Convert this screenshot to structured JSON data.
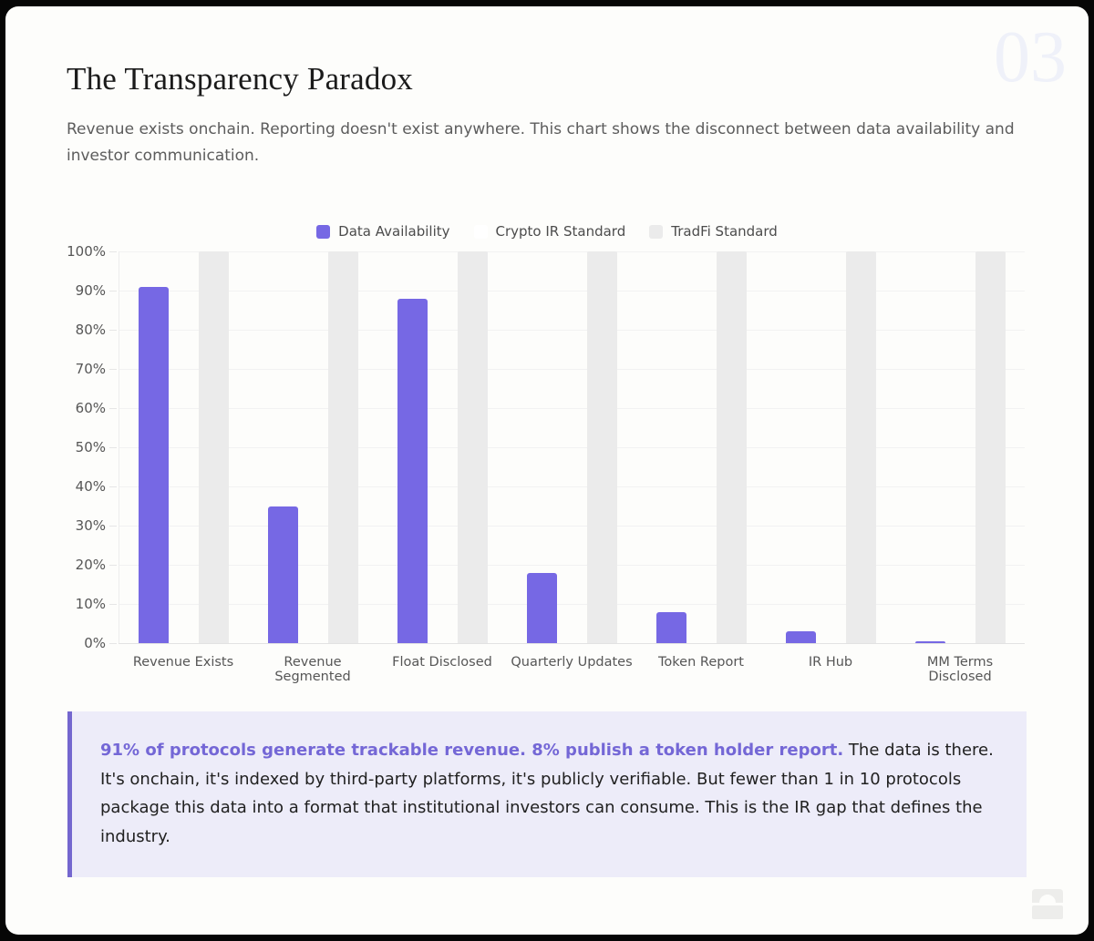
{
  "page": {
    "page_number": "03",
    "title": "The Transparency Paradox",
    "subtitle": "Revenue exists onchain. Reporting doesn't exist anywhere. This chart shows the disconnect between data availability and investor communication."
  },
  "chart_data": {
    "type": "bar",
    "title": "",
    "categories": [
      "Revenue Exists",
      "Revenue Segmented",
      "Float Disclosed",
      "Quarterly Updates",
      "Token Report",
      "IR Hub",
      "MM Terms Disclosed"
    ],
    "series": [
      {
        "name": "Data Availability",
        "color": "#7668e4",
        "values": [
          91,
          35,
          88,
          18,
          8,
          3,
          0.5
        ]
      },
      {
        "name": "Crypto IR Standard",
        "color": "#ffffff",
        "values": [
          0,
          0,
          0,
          0,
          0,
          0,
          0
        ]
      },
      {
        "name": "TradFi Standard",
        "color": "#ebebeb",
        "values": [
          100,
          100,
          100,
          100,
          100,
          100,
          100
        ]
      }
    ],
    "xlabel": "",
    "ylabel": "",
    "ylim": [
      0,
      100
    ],
    "ytick_step": 10,
    "yticks": [
      "100%",
      "90%",
      "80%",
      "70%",
      "60%",
      "50%",
      "40%",
      "30%",
      "20%",
      "10%",
      "0%"
    ],
    "grid": true,
    "legend_position": "top-center"
  },
  "callout": {
    "highlight": "91% of protocols generate trackable revenue. 8% publish a token holder report.",
    "body": " The data is there. It's onchain, it's indexed by third-party platforms, it's publicly verifiable. But fewer than 1 in 10 protocols package this data into a format that institutional investors can consume. This is the IR gap that defines the industry."
  },
  "colors": {
    "accent_purple": "#7668e4",
    "callout_background": "#edecf9",
    "callout_border": "#7467cf",
    "card_background": "#fdfdfb",
    "frame": "#060606",
    "page_number": "#eff1f9"
  },
  "icons": {
    "brand_logo": "arch-monument-icon"
  }
}
